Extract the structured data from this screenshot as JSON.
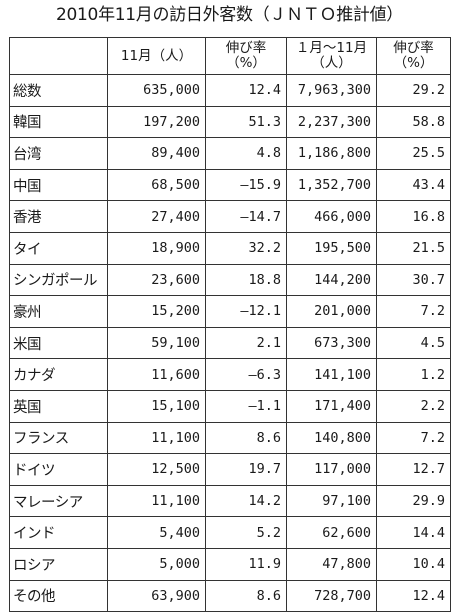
{
  "title": "2010年11月の訪日外客数（ＪＮＴＯ推計値）",
  "headers": {
    "country": "",
    "nov": "11月（人）",
    "nov_rate_line1": "伸び率",
    "nov_rate_line2": "（%）",
    "ytd_line1": "１月～11月",
    "ytd_line2": "（人）",
    "ytd_rate_line1": "伸び率",
    "ytd_rate_line2": "（%）"
  },
  "rows": [
    {
      "country": "総数",
      "nov": "635,000",
      "nov_rate": "12.4",
      "ytd": "7,963,300",
      "ytd_rate": "29.2"
    },
    {
      "country": "韓国",
      "nov": "197,200",
      "nov_rate": "51.3",
      "ytd": "2,237,300",
      "ytd_rate": "58.8"
    },
    {
      "country": "台湾",
      "nov": "89,400",
      "nov_rate": "4.8",
      "ytd": "1,186,800",
      "ytd_rate": "25.5"
    },
    {
      "country": "中国",
      "nov": "68,500",
      "nov_rate": "―15.9",
      "ytd": "1,352,700",
      "ytd_rate": "43.4"
    },
    {
      "country": "香港",
      "nov": "27,400",
      "nov_rate": "―14.7",
      "ytd": "466,000",
      "ytd_rate": "16.8"
    },
    {
      "country": "タイ",
      "nov": "18,900",
      "nov_rate": "32.2",
      "ytd": "195,500",
      "ytd_rate": "21.5"
    },
    {
      "country": "シンガポール",
      "nov": "23,600",
      "nov_rate": "18.8",
      "ytd": "144,200",
      "ytd_rate": "30.7"
    },
    {
      "country": "豪州",
      "nov": "15,200",
      "nov_rate": "―12.1",
      "ytd": "201,000",
      "ytd_rate": "7.2"
    },
    {
      "country": "米国",
      "nov": "59,100",
      "nov_rate": "2.1",
      "ytd": "673,300",
      "ytd_rate": "4.5"
    },
    {
      "country": "カナダ",
      "nov": "11,600",
      "nov_rate": "―6.3",
      "ytd": "141,100",
      "ytd_rate": "1.2"
    },
    {
      "country": "英国",
      "nov": "15,100",
      "nov_rate": "―1.1",
      "ytd": "171,400",
      "ytd_rate": "2.2"
    },
    {
      "country": "フランス",
      "nov": "11,100",
      "nov_rate": "8.6",
      "ytd": "140,800",
      "ytd_rate": "7.2"
    },
    {
      "country": "ドイツ",
      "nov": "12,500",
      "nov_rate": "19.7",
      "ytd": "117,000",
      "ytd_rate": "12.7"
    },
    {
      "country": "マレーシア",
      "nov": "11,100",
      "nov_rate": "14.2",
      "ytd": "97,100",
      "ytd_rate": "29.9"
    },
    {
      "country": "インド",
      "nov": "5,400",
      "nov_rate": "5.2",
      "ytd": "62,600",
      "ytd_rate": "14.4"
    },
    {
      "country": "ロシア",
      "nov": "5,000",
      "nov_rate": "11.9",
      "ytd": "47,800",
      "ytd_rate": "10.4"
    },
    {
      "country": "その他",
      "nov": "63,900",
      "nov_rate": "8.6",
      "ytd": "728,700",
      "ytd_rate": "12.4"
    }
  ]
}
